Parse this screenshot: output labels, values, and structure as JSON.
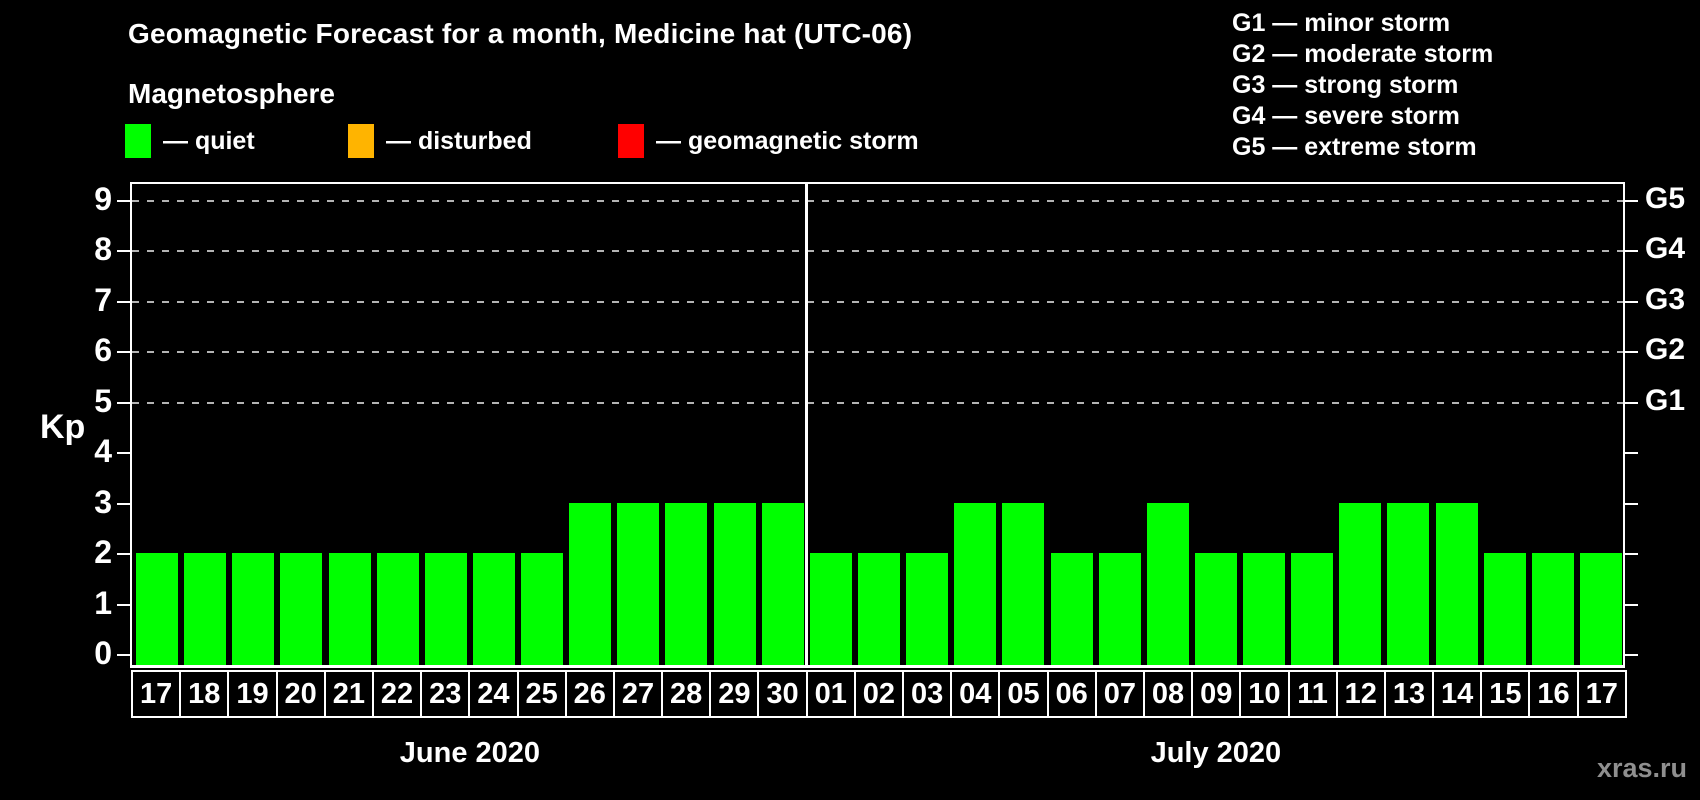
{
  "title": "Geomagnetic Forecast for a month, Medicine hat (UTC-06)",
  "magnetosphere": {
    "heading": "Magnetosphere",
    "items": [
      {
        "label": "— quiet",
        "color": "#00ff00"
      },
      {
        "label": "— disturbed",
        "color": "#ffb400"
      },
      {
        "label": "— geomagnetic storm",
        "color": "#ff0000"
      }
    ]
  },
  "storm_scale": {
    "lines": [
      "G1 — minor storm",
      "G2 — moderate storm",
      "G3 — strong storm",
      "G4 — severe storm",
      "G5 — extreme storm"
    ]
  },
  "watermark": "xras.ru",
  "chart_data": {
    "type": "bar",
    "title": "Geomagnetic Forecast for a month, Medicine hat (UTC-06)",
    "ylabel": "Kp",
    "ylim": [
      0,
      9
    ],
    "yticks": [
      0,
      1,
      2,
      3,
      4,
      5,
      6,
      7,
      8,
      9
    ],
    "grid": "horizontal dashed gridlines at Kp 5,6,7,8,9 only",
    "grid_kp": [
      5,
      6,
      7,
      8,
      9
    ],
    "right_axis": [
      {
        "kp": 5,
        "label": "G1"
      },
      {
        "kp": 6,
        "label": "G2"
      },
      {
        "kp": 7,
        "label": "G3"
      },
      {
        "kp": 8,
        "label": "G4"
      },
      {
        "kp": 9,
        "label": "G5"
      }
    ],
    "bar_color": "#00ff00",
    "legend_position": "top-left",
    "months": [
      {
        "label": "June 2020",
        "days": [
          "17",
          "18",
          "19",
          "20",
          "21",
          "22",
          "23",
          "24",
          "25",
          "26",
          "27",
          "28",
          "29",
          "30"
        ],
        "values": [
          2,
          2,
          2,
          2,
          2,
          2,
          2,
          2,
          2,
          3,
          3,
          3,
          3,
          3
        ]
      },
      {
        "label": "July 2020",
        "days": [
          "01",
          "02",
          "03",
          "04",
          "05",
          "06",
          "07",
          "08",
          "09",
          "10",
          "11",
          "12",
          "13",
          "14",
          "15",
          "16",
          "17"
        ],
        "values": [
          2,
          2,
          2,
          3,
          3,
          2,
          2,
          3,
          2,
          2,
          2,
          3,
          3,
          3,
          2,
          2,
          2
        ]
      }
    ]
  }
}
